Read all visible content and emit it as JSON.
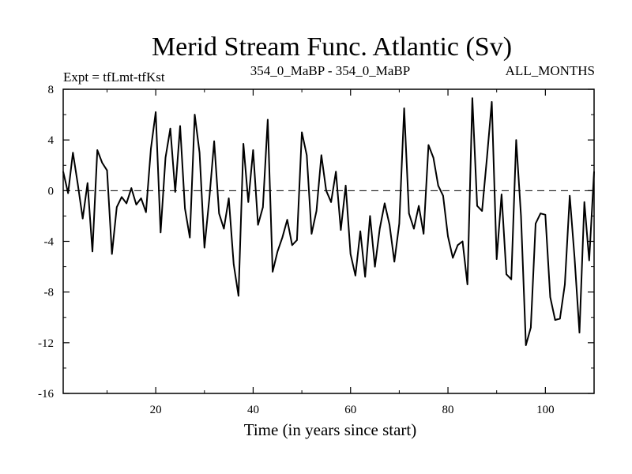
{
  "title": "Merid Stream Func. Atlantic (Sv)",
  "subtitle_left": "Expt = tfLmt-tfKst",
  "subtitle_center": "354_0_MaBP - 354_0_MaBP",
  "subtitle_right": "ALL_MONTHS",
  "chart_data": {
    "type": "line",
    "title": "Merid Stream Func. Atlantic (Sv)",
    "xlabel": "Time (in years since start)",
    "ylabel": "",
    "xlim": [
      1,
      110
    ],
    "ylim": [
      -16,
      8
    ],
    "x_ticks": [
      20,
      40,
      60,
      80,
      100
    ],
    "y_ticks": [
      -16,
      -12,
      -8,
      -4,
      0,
      4,
      8
    ],
    "x_tick_labels": [
      "20",
      "40",
      "60",
      "80",
      "100"
    ],
    "y_tick_labels": [
      "-16",
      "-12",
      "-8",
      "-4",
      "0",
      "4",
      "8"
    ],
    "zero_line": "dashed",
    "series": [
      {
        "name": "Merid Stream Func. Atlantic",
        "x": [
          1,
          2,
          3,
          4,
          5,
          6,
          7,
          8,
          9,
          10,
          11,
          12,
          13,
          14,
          15,
          16,
          17,
          18,
          19,
          20,
          21,
          22,
          23,
          24,
          25,
          26,
          27,
          28,
          29,
          30,
          31,
          32,
          33,
          34,
          35,
          36,
          37,
          38,
          39,
          40,
          41,
          42,
          43,
          44,
          45,
          46,
          47,
          48,
          49,
          50,
          51,
          52,
          53,
          54,
          55,
          56,
          57,
          58,
          59,
          60,
          61,
          62,
          63,
          64,
          65,
          66,
          67,
          68,
          69,
          70,
          71,
          72,
          73,
          74,
          75,
          76,
          77,
          78,
          79,
          80,
          81,
          82,
          83,
          84,
          85,
          86,
          87,
          88,
          89,
          90,
          91,
          92,
          93,
          94,
          95,
          96,
          97,
          98,
          99,
          100,
          101,
          102,
          103,
          104,
          105,
          106,
          107,
          108,
          109,
          110
        ],
        "values": [
          1.5,
          -0.2,
          3.0,
          0.5,
          -2.2,
          0.6,
          -4.8,
          3.2,
          2.2,
          1.6,
          -5.0,
          -1.3,
          -0.5,
          -1.0,
          0.2,
          -1.1,
          -0.6,
          -1.7,
          3.3,
          6.2,
          -3.3,
          2.6,
          4.9,
          -0.1,
          5.1,
          -1.4,
          -3.7,
          6.0,
          3.0,
          -4.5,
          -0.6,
          3.9,
          -1.8,
          -3.0,
          -0.6,
          -5.8,
          -8.3,
          3.7,
          -0.9,
          3.2,
          -2.7,
          -1.3,
          5.6,
          -6.4,
          -4.8,
          -3.7,
          -2.3,
          -4.3,
          -3.9,
          4.6,
          2.8,
          -3.4,
          -1.6,
          2.8,
          0.0,
          -0.9,
          1.5,
          -3.1,
          0.4,
          -5.0,
          -6.7,
          -3.2,
          -6.8,
          -2.0,
          -6.0,
          -3.0,
          -1.0,
          -2.7,
          -5.6,
          -2.6,
          6.5,
          -1.8,
          -3.0,
          -1.2,
          -3.4,
          3.6,
          2.6,
          0.4,
          -0.4,
          -3.6,
          -5.3,
          -4.3,
          -4.0,
          -7.4,
          7.3,
          -1.2,
          -1.6,
          2.6,
          7.0,
          -5.4,
          -0.3,
          -6.6,
          -7.0,
          4.0,
          -2.0,
          -12.2,
          -10.8,
          -2.6,
          -1.8,
          -1.9,
          -8.4,
          -10.2,
          -10.1,
          -7.4,
          -0.4,
          -5.3,
          -11.2,
          -0.9,
          -5.5,
          1.5
        ]
      }
    ]
  }
}
